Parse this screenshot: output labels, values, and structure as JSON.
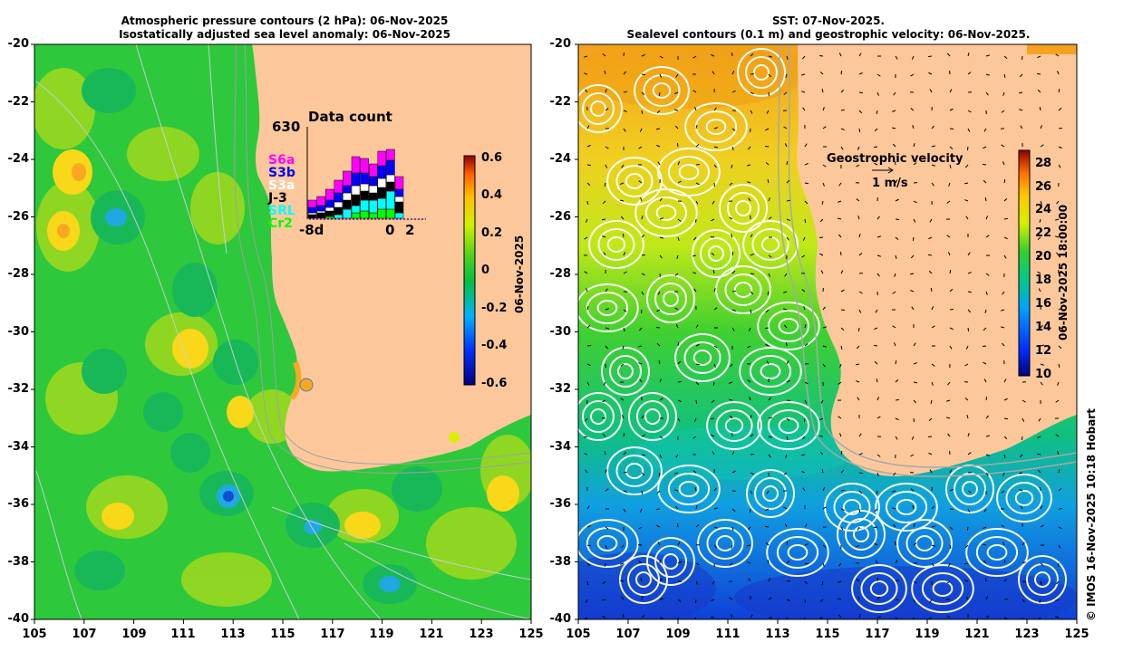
{
  "left_panel": {
    "title_line1": "Atmospheric pressure contours (2 hPa): 06-Nov-2025",
    "title_line2": "Isostatically adjusted sea level anomaly: 06-Nov-2025",
    "colorbar_date": "06-Nov-2025",
    "colorbar_ticks": [
      "0.6",
      "0.4",
      "0.2",
      "0",
      "-0.2",
      "-0.4",
      "-0.6"
    ],
    "inset": {
      "title": "Data count",
      "max_count": "630",
      "missions": [
        {
          "name": "S6a",
          "color": "#ff00ff"
        },
        {
          "name": "S3b",
          "color": "#0000ff"
        },
        {
          "name": "S3a",
          "color": "#ffffff"
        },
        {
          "name": "J-3",
          "color": "#000000"
        },
        {
          "name": "SRL",
          "color": "#00ffff"
        },
        {
          "name": "Cr2",
          "color": "#00ff00"
        }
      ],
      "x_start": "-8d",
      "x_zero": "0",
      "x_end": "2"
    }
  },
  "right_panel": {
    "title_line1": "SST: 07-Nov-2025.",
    "title_line2": "Sealevel contours (0.1 m) and geostrophic velocity: 06-Nov-2025.",
    "colorbar_datetime": "06-Nov-2025 18:00:00",
    "colorbar_ticks": [
      "28",
      "26",
      "24",
      "22",
      "20",
      "18",
      "16",
      "14",
      "12",
      "10"
    ],
    "velocity_label": "Geostrophic velocity",
    "velocity_scale": "1 m/s"
  },
  "y_axis_ticks": [
    "-20",
    "-22",
    "-24",
    "-26",
    "-28",
    "-30",
    "-32",
    "-34",
    "-36",
    "-38",
    "-40"
  ],
  "x_axis_ticks": [
    "105",
    "107",
    "109",
    "111",
    "113",
    "115",
    "117",
    "119",
    "121",
    "123",
    "125"
  ],
  "credit": "© IMOS 16-Nov-2025 10:18 Hobart",
  "colors": {
    "land": "#fcc89b",
    "ocean_green": "#22c83a",
    "sst_blue": "#1a50e0"
  }
}
